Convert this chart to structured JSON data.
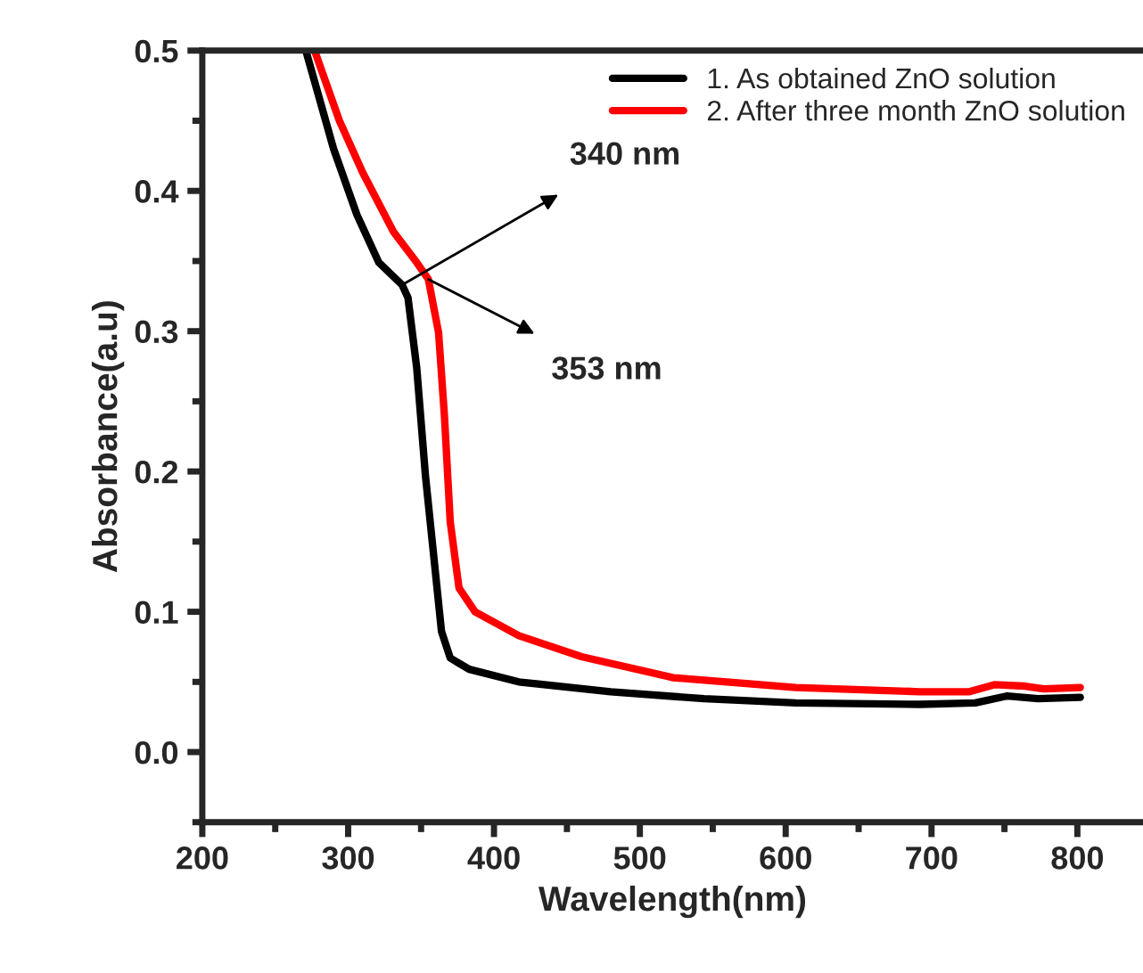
{
  "chart_data": {
    "type": "line",
    "xlabel": "Wavelength(nm)",
    "ylabel": "Absorbance(a.u)",
    "xlim": [
      200,
      845
    ],
    "ylim": [
      -0.05,
      0.5
    ],
    "xticks": [
      200,
      300,
      400,
      500,
      600,
      700,
      800
    ],
    "yticks": [
      {
        "value": 0,
        "label": "0.0"
      },
      {
        "value": 0.1,
        "label": "0.1"
      },
      {
        "value": 0.2,
        "label": "0.2"
      },
      {
        "value": 0.3,
        "label": "0.3"
      },
      {
        "value": 0.4,
        "label": "0.4"
      },
      {
        "value": 0.5,
        "label": "0.5"
      }
    ],
    "grid": false,
    "legend": "top right",
    "line_style": "solid",
    "marker": "none",
    "annotations": [
      {
        "text": "340 nm",
        "x": 337,
        "y": 0.333
      },
      {
        "text": "353 nm",
        "x": 355,
        "y": 0.337
      }
    ],
    "series": [
      {
        "name": "1. As obtained ZnO solution",
        "color": "#000000",
        "x": [
          271,
          290,
          306,
          321,
          337,
          341,
          347,
          353,
          364,
          370,
          383,
          417,
          480,
          544,
          607,
          692,
          730,
          752,
          773,
          802
        ],
        "values": [
          0.5,
          0.43,
          0.383,
          0.349,
          0.333,
          0.324,
          0.274,
          0.197,
          0.086,
          0.067,
          0.059,
          0.05,
          0.043,
          0.038,
          0.035,
          0.034,
          0.035,
          0.04,
          0.038,
          0.039
        ]
      },
      {
        "name": "2. After three month ZnO solution",
        "color": "#ff0000",
        "x": [
          277,
          294,
          310,
          331,
          347,
          355,
          362,
          366,
          370,
          376,
          387,
          417,
          460,
          523,
          607,
          692,
          726,
          743,
          764,
          777,
          802
        ],
        "values": [
          0.5,
          0.45,
          0.413,
          0.371,
          0.349,
          0.337,
          0.299,
          0.24,
          0.164,
          0.117,
          0.1,
          0.083,
          0.068,
          0.053,
          0.046,
          0.043,
          0.043,
          0.048,
          0.047,
          0.045,
          0.046
        ]
      }
    ]
  }
}
